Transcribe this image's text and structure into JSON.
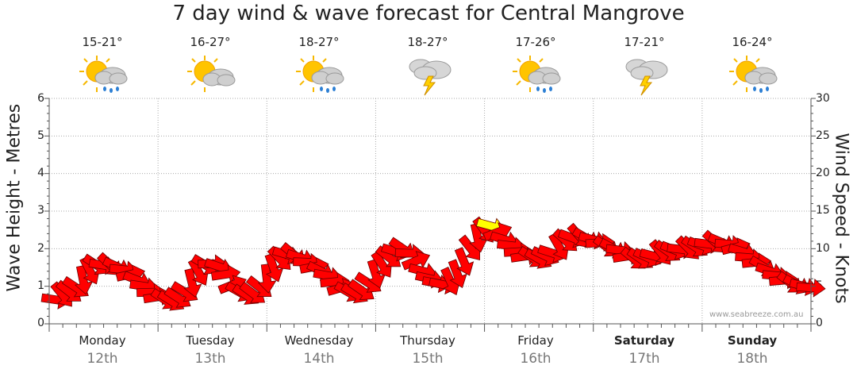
{
  "title": "7 day wind & wave forecast for Central Mangrove",
  "watermark": "www.seabreeze.com.au",
  "days": [
    {
      "name": "Monday",
      "date": "12th",
      "temp": "15-21°",
      "icon": "sun-cloud-rain-icon",
      "bold": false
    },
    {
      "name": "Tuesday",
      "date": "13th",
      "temp": "16-27°",
      "icon": "sun-cloud-icon",
      "bold": false
    },
    {
      "name": "Wednesday",
      "date": "14th",
      "temp": "18-27°",
      "icon": "sun-cloud-rain-icon",
      "bold": false
    },
    {
      "name": "Thursday",
      "date": "15th",
      "temp": "18-27°",
      "icon": "storm-icon",
      "bold": false
    },
    {
      "name": "Friday",
      "date": "16th",
      "temp": "17-26°",
      "icon": "sun-cloud-rain-icon",
      "bold": false
    },
    {
      "name": "Saturday",
      "date": "17th",
      "temp": "17-21°",
      "icon": "storm-icon",
      "bold": true
    },
    {
      "name": "Sunday",
      "date": "18th",
      "temp": "16-24°",
      "icon": "sun-cloud-rain-icon",
      "bold": true
    }
  ],
  "chart_data": {
    "type": "line",
    "ylabel": "Wave Height - Metres",
    "y2label": "Wind Speed - Knots",
    "ylim": [
      0,
      6
    ],
    "y2lim": [
      0,
      30
    ],
    "yticks": [
      "0",
      "1",
      "2",
      "3",
      "4",
      "5",
      "6"
    ],
    "y2ticks": [
      "0",
      "5",
      "10",
      "15",
      "20",
      "25",
      "30"
    ],
    "grid": true,
    "categories": [
      "Monday 12th",
      "Tuesday 13th",
      "Wednesday 14th",
      "Thursday 15th",
      "Friday 16th",
      "Saturday 17th",
      "Sunday 18th"
    ],
    "series": [
      {
        "unit": "knots",
        "marker": "direction-arrow",
        "color": "#ff0000",
        "highlight_color": "#ffff00",
        "x": [
          0.0,
          0.25,
          0.5,
          0.75,
          1.0,
          1.25,
          1.5,
          1.75,
          2.0,
          2.25,
          2.5,
          2.75,
          3.0,
          3.25,
          3.5,
          3.75,
          4.0,
          4.25,
          4.5,
          4.75,
          5.0,
          5.25,
          5.5,
          5.75,
          6.0,
          6.25,
          6.5,
          6.75,
          7.0,
          7.25,
          7.5,
          7.75,
          8.0,
          8.25,
          8.5,
          8.75,
          9.0,
          9.25,
          9.5,
          9.75,
          10.0,
          10.25,
          10.5,
          10.75,
          11.0,
          11.25,
          11.5,
          11.75,
          12.0,
          12.25,
          12.5,
          12.75,
          13.0,
          13.25,
          13.5,
          13.75,
          14.0,
          14.25,
          14.5,
          14.75,
          15.0,
          15.25,
          15.5,
          15.75,
          16.0,
          16.25,
          16.5,
          16.75,
          17.0,
          17.25,
          17.5,
          17.75,
          18.0,
          18.25,
          18.5,
          18.75,
          19.0,
          19.25,
          19.5,
          19.75,
          20.0,
          20.25,
          20.5,
          20.75,
          21.0,
          21.25,
          21.5,
          21.75,
          22.0,
          22.25,
          22.5,
          22.75,
          23.0,
          23.25,
          23.5,
          23.75,
          24.0,
          24.25,
          24.5,
          24.75,
          25.0,
          25.25,
          25.5,
          25.75,
          26.0,
          26.25,
          26.5,
          26.75,
          27.0,
          27.25,
          27.5,
          27.75
        ],
        "values": [
          3.2,
          3.8,
          4.2,
          4.8,
          5.8,
          7.0,
          7.8,
          7.8,
          7.8,
          7.6,
          7.2,
          6.6,
          5.8,
          5.0,
          4.2,
          3.6,
          3.2,
          3.0,
          3.4,
          4.2,
          5.4,
          6.8,
          7.8,
          8.0,
          7.6,
          6.6,
          5.2,
          4.2,
          3.8,
          4.0,
          4.8,
          6.0,
          7.4,
          8.6,
          9.2,
          9.2,
          8.8,
          8.2,
          7.6,
          7.0,
          6.4,
          5.6,
          4.8,
          4.2,
          4.0,
          4.4,
          5.4,
          6.6,
          7.8,
          8.8,
          9.6,
          10.0,
          9.4,
          8.4,
          7.0,
          6.0,
          5.4,
          5.2,
          5.6,
          6.6,
          8.2,
          10.0,
          11.4,
          12.4,
          13.0,
          12.2,
          11.2,
          10.4,
          9.6,
          9.0,
          8.8,
          8.6,
          9.0,
          9.4,
          10.2,
          11.0,
          11.4,
          11.6,
          11.4,
          11.2,
          10.8,
          10.2,
          10.0,
          9.8,
          9.0,
          8.6,
          8.6,
          8.8,
          9.0,
          9.4,
          9.6,
          9.8,
          9.9,
          10.0,
          10.2,
          10.4,
          10.6,
          10.8,
          10.8,
          10.6,
          10.2,
          9.6,
          8.8,
          8.2,
          7.6,
          7.0,
          6.4,
          5.8,
          5.4,
          5.2,
          5.0,
          4.8
        ]
      }
    ]
  }
}
